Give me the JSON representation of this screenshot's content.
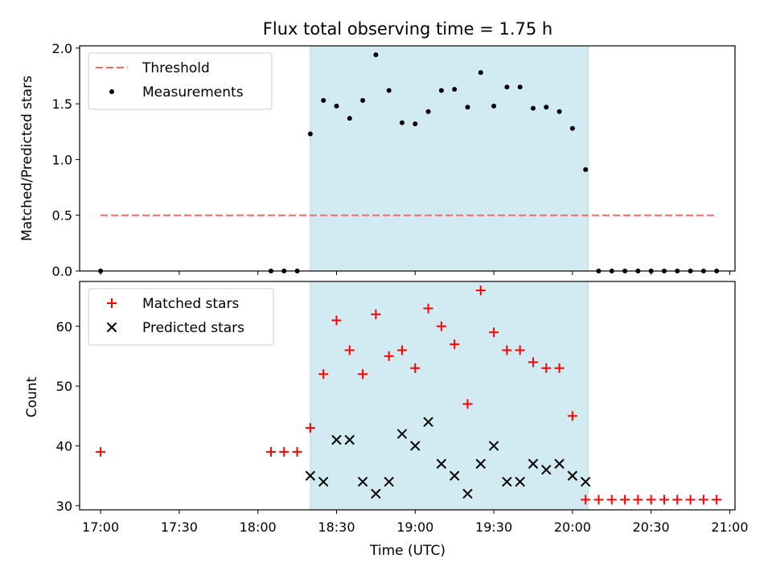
{
  "chart_data": [
    {
      "type": "scatter",
      "title": "Flux total observing time = 1.75 h",
      "ylabel": "Matched/Predicted stars",
      "xlim": [
        "16:52",
        "21:02"
      ],
      "ylim": [
        0,
        2.02
      ],
      "yticks": [
        "0.0",
        "0.5",
        "1.0",
        "1.5",
        "2.0"
      ],
      "shaded_region": [
        "18:20",
        "20:06"
      ],
      "shade_color": "#add8e6",
      "legend_position": "upper-left",
      "threshold": {
        "name": "Threshold",
        "value": 0.5,
        "x_range": [
          "17:00",
          "20:55"
        ],
        "color": "#ff6666"
      },
      "series": [
        {
          "name": "Measurements",
          "marker": "dot",
          "color": "#000000",
          "x": [
            "17:00",
            "18:05",
            "18:10",
            "18:15",
            "18:20",
            "18:25",
            "18:30",
            "18:35",
            "18:40",
            "18:45",
            "18:50",
            "18:55",
            "19:00",
            "19:05",
            "19:10",
            "19:15",
            "19:20",
            "19:25",
            "19:30",
            "19:35",
            "19:40",
            "19:45",
            "19:50",
            "19:55",
            "20:00",
            "20:05",
            "20:10",
            "20:15",
            "20:20",
            "20:25",
            "20:30",
            "20:35",
            "20:40",
            "20:45",
            "20:50",
            "20:55"
          ],
          "values": [
            0,
            0,
            0,
            0,
            1.23,
            1.53,
            1.48,
            1.37,
            1.53,
            1.94,
            1.62,
            1.33,
            1.32,
            1.43,
            1.62,
            1.63,
            1.47,
            1.78,
            1.48,
            1.65,
            1.65,
            1.46,
            1.47,
            1.43,
            1.28,
            0.91,
            0,
            0,
            0,
            0,
            0,
            0,
            0,
            0,
            0,
            0
          ]
        }
      ]
    },
    {
      "type": "scatter",
      "xlabel": "Time (UTC)",
      "ylabel": "Count",
      "xlim": [
        "16:52",
        "21:02"
      ],
      "ylim": [
        29.3,
        67.5
      ],
      "yticks": [
        "30",
        "40",
        "50",
        "60"
      ],
      "xticks": [
        "17:00",
        "17:30",
        "18:00",
        "18:30",
        "19:00",
        "19:30",
        "20:00",
        "20:30",
        "21:00"
      ],
      "shaded_region": [
        "18:20",
        "20:06"
      ],
      "shade_color": "#add8e6",
      "legend_position": "upper-left",
      "series": [
        {
          "name": "Matched stars",
          "marker": "plus",
          "color": "#ff0000",
          "x": [
            "17:00",
            "18:05",
            "18:10",
            "18:15",
            "18:20",
            "18:25",
            "18:30",
            "18:35",
            "18:40",
            "18:45",
            "18:50",
            "18:55",
            "19:00",
            "19:05",
            "19:10",
            "19:15",
            "19:20",
            "19:25",
            "19:30",
            "19:35",
            "19:40",
            "19:45",
            "19:50",
            "19:55",
            "20:00",
            "20:05",
            "20:10",
            "20:15",
            "20:20",
            "20:25",
            "20:30",
            "20:35",
            "20:40",
            "20:45",
            "20:50",
            "20:55"
          ],
          "values": [
            39,
            39,
            39,
            39,
            43,
            52,
            61,
            56,
            52,
            62,
            55,
            56,
            53,
            63,
            60,
            57,
            47,
            66,
            59,
            56,
            56,
            54,
            53,
            53,
            45,
            31,
            31,
            31,
            31,
            31,
            31,
            31,
            31,
            31,
            31,
            31
          ]
        },
        {
          "name": "Predicted stars",
          "marker": "x",
          "color": "#000000",
          "x": [
            "18:20",
            "18:25",
            "18:30",
            "18:35",
            "18:40",
            "18:45",
            "18:50",
            "18:55",
            "19:00",
            "19:05",
            "19:10",
            "19:15",
            "19:20",
            "19:25",
            "19:30",
            "19:35",
            "19:40",
            "19:45",
            "19:50",
            "19:55",
            "20:00",
            "20:05"
          ],
          "values": [
            35,
            34,
            41,
            41,
            34,
            32,
            34,
            42,
            40,
            44,
            37,
            35,
            32,
            37,
            40,
            34,
            34,
            37,
            36,
            37,
            35,
            34
          ]
        }
      ]
    }
  ]
}
